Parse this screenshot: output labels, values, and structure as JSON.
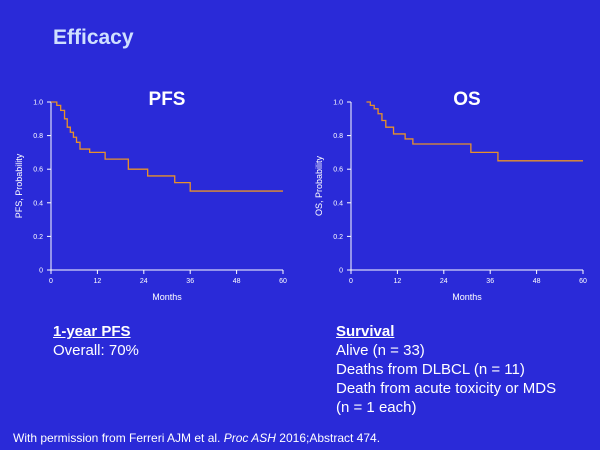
{
  "slide": {
    "title": "Efficacy",
    "footer": {
      "prefix": "With permission from Ferreri AJM et al. ",
      "journal": "Proc ASH",
      "suffix": " 2016;Abstract 474."
    }
  },
  "summaries": {
    "pfs": {
      "heading": "1-year PFS",
      "lines": [
        "Overall: 70%"
      ]
    },
    "os": {
      "heading": "Survival",
      "lines": [
        "Alive (n = 33)",
        "Deaths from DLBCL (n = 11)",
        "Death from acute toxicity or MDS",
        "(n = 1 each)"
      ]
    }
  },
  "colors": {
    "background": "#2a2ad8",
    "curve": "#e8912a",
    "title": "#cfe0ff"
  },
  "chart_data": [
    {
      "type": "line",
      "step": true,
      "title": "PFS",
      "xlabel": "Months",
      "ylabel": "PFS, Probability",
      "xlim": [
        0,
        60
      ],
      "ylim": [
        0,
        1
      ],
      "xticks": [
        0,
        12,
        24,
        36,
        48,
        60
      ],
      "xtick_labels": [
        "0",
        "12",
        "24",
        "36",
        "48",
        "60"
      ],
      "yticks": [
        0,
        0.2,
        0.4,
        0.6,
        0.8,
        1.0
      ],
      "ytick_labels": [
        "0",
        "0.2",
        "0.4",
        "0.6",
        "0.8",
        "1.0"
      ],
      "grid": false,
      "series": [
        {
          "x": [
            0,
            1.5,
            2.5,
            3.5,
            4.2,
            5,
            5.8,
            6.6,
            7.5,
            10,
            14,
            20,
            25,
            32,
            36,
            60
          ],
          "y": [
            1.0,
            0.98,
            0.95,
            0.9,
            0.85,
            0.82,
            0.79,
            0.76,
            0.72,
            0.7,
            0.66,
            0.6,
            0.56,
            0.52,
            0.47,
            0.47
          ]
        }
      ]
    },
    {
      "type": "line",
      "step": true,
      "title": "OS",
      "xlabel": "Months",
      "ylabel": "OS, Probability",
      "xlim": [
        0,
        60
      ],
      "ylim": [
        0,
        1
      ],
      "xticks": [
        0,
        12,
        24,
        36,
        48,
        60
      ],
      "xtick_labels": [
        "0",
        "12",
        "24",
        "36",
        "48",
        "60"
      ],
      "yticks": [
        0,
        0.2,
        0.4,
        0.6,
        0.8,
        1.0
      ],
      "ytick_labels": [
        "0",
        "0.2",
        "0.4",
        "0.6",
        "0.8",
        "1.0"
      ],
      "grid": false,
      "series": [
        {
          "x": [
            4,
            5,
            6,
            7,
            8,
            9,
            11,
            14,
            16,
            31,
            38,
            60
          ],
          "y": [
            1.0,
            0.98,
            0.96,
            0.93,
            0.89,
            0.85,
            0.81,
            0.78,
            0.75,
            0.7,
            0.65,
            0.65
          ]
        }
      ]
    }
  ]
}
